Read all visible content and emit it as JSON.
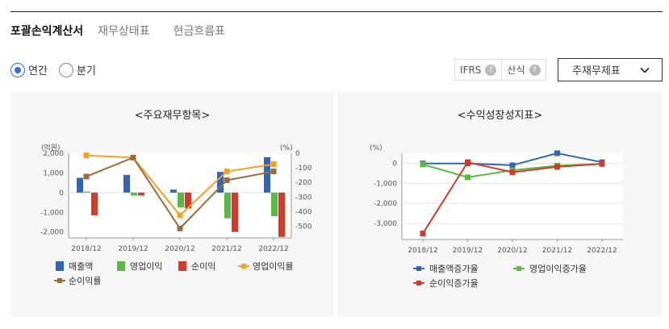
{
  "tabs": [
    {
      "label": "포괄손익계산서",
      "active": true
    },
    {
      "label": "재무상태표",
      "active": false
    },
    {
      "label": "현금흐름표",
      "active": false
    }
  ],
  "period": {
    "options": [
      "연간",
      "분기"
    ],
    "selected": "연간"
  },
  "options": {
    "ifrs_label": "IFRS",
    "calc_label": "산식",
    "help_glyph": "?"
  },
  "select": {
    "value": "주재무제표"
  },
  "icons": {
    "chevron": "chevron-down-icon",
    "help": "question-icon"
  },
  "colors": {
    "sales": "#3465b3",
    "op_income": "#5ab843",
    "net_income": "#d13b2a",
    "op_margin": "#f5a01f",
    "net_margin": "#9c6b3f",
    "radio_accent": "#2f6fd6"
  },
  "chart_data": [
    {
      "type": "bar",
      "title": "<주요재무항목>",
      "categories": [
        "2018/12",
        "2019/12",
        "2020/12",
        "2021/12",
        "2022/12"
      ],
      "y_left": {
        "label": "(억원)",
        "ticks": [
          2000,
          1000,
          0,
          -1000,
          -2000
        ],
        "tick_labels": [
          "2,000",
          "1,000",
          "0",
          "-1,000",
          "-2,000"
        ],
        "range": [
          -2300,
          2000
        ]
      },
      "y_right": {
        "label": "(%)",
        "ticks": [
          0,
          -100,
          -200,
          -300,
          -400,
          -500
        ],
        "tick_labels": [
          "0",
          "-100",
          "-200",
          "-300",
          "-400",
          "-500"
        ],
        "range": [
          -580,
          0
        ]
      },
      "series": [
        {
          "name": "매출액",
          "type": "bar",
          "axis": "left",
          "values": [
            750,
            900,
            150,
            1050,
            1800
          ]
        },
        {
          "name": "영업이익",
          "type": "bar",
          "axis": "left",
          "values": [
            50,
            -150,
            -750,
            -1300,
            -1200
          ]
        },
        {
          "name": "순이익",
          "type": "bar",
          "axis": "left",
          "values": [
            -1150,
            -150,
            -800,
            -2000,
            -2250
          ]
        },
        {
          "name": "영업이익률",
          "type": "line",
          "axis": "right",
          "values": [
            -15,
            -30,
            -425,
            -125,
            -75
          ]
        },
        {
          "name": "순이익률",
          "type": "line",
          "axis": "right",
          "values": [
            -160,
            -30,
            -515,
            -185,
            -125
          ]
        }
      ],
      "legend_position": "bottom"
    },
    {
      "type": "line",
      "title": "<수익성장성지표>",
      "categories": [
        "2018/12",
        "2019/12",
        "2020/12",
        "2021/12",
        "2022/12"
      ],
      "y": {
        "label": "(%)",
        "ticks": [
          0,
          -1000,
          -2000,
          -3000
        ],
        "tick_labels": [
          "0",
          "-1,000",
          "-2,000",
          "-3,000"
        ],
        "range": [
          -3800,
          500
        ]
      },
      "series": [
        {
          "name": "매출액증가율",
          "values": [
            -10,
            -10,
            -100,
            500,
            50
          ]
        },
        {
          "name": "영업이익증가율",
          "values": [
            -60,
            -700,
            -350,
            -120,
            -30
          ]
        },
        {
          "name": "순이익증가율",
          "values": [
            -3500,
            50,
            -450,
            -180,
            -30
          ]
        }
      ],
      "legend_position": "bottom"
    }
  ]
}
